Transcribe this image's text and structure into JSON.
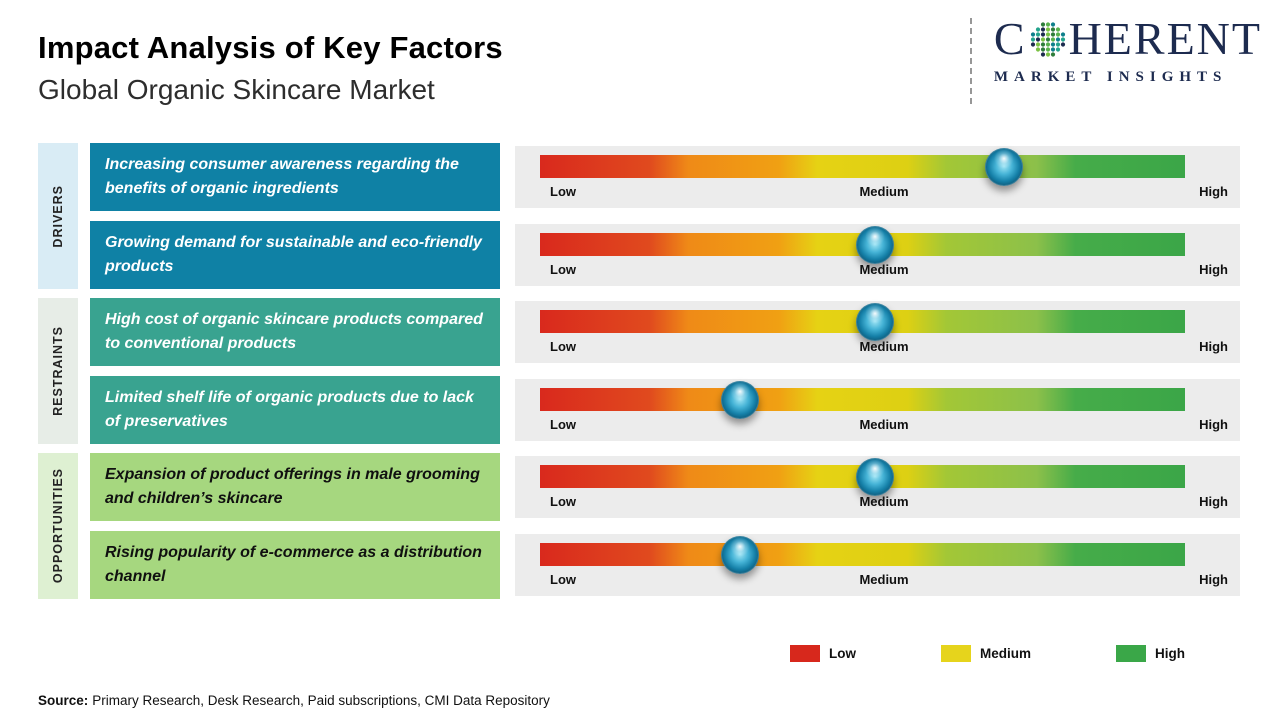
{
  "header": {
    "title": "Impact Analysis of Key Factors",
    "subtitle": "Global Organic Skincare Market"
  },
  "logo": {
    "name_prefix": "C",
    "name_suffix": "HERENT",
    "full_name": "COHERENT",
    "tagline": "MARKET INSIGHTS"
  },
  "groups": [
    {
      "label": "DRIVERS"
    },
    {
      "label": "RESTRAINTS"
    },
    {
      "label": "OPPORTUNITIES"
    }
  ],
  "gauge_scale": {
    "low": "Low",
    "medium": "Medium",
    "high": "High"
  },
  "chart_data": {
    "type": "table",
    "title": "Impact Analysis of Key Factors",
    "subtitle": "Global Organic Skincare Market",
    "scale": {
      "labels": [
        "Low",
        "Medium",
        "High"
      ],
      "low_percent": 0,
      "medium_percent": 50,
      "high_percent": 100
    },
    "rows": [
      {
        "category": "Drivers",
        "factor": "Increasing consumer awareness regarding the benefits of organic ingredients",
        "impact_percent": 72,
        "impact_level": "Medium-High"
      },
      {
        "category": "Drivers",
        "factor": "Growing demand for sustainable and eco-friendly products",
        "impact_percent": 52,
        "impact_level": "Medium"
      },
      {
        "category": "Restraints",
        "factor": "High cost of organic skincare products compared to conventional products",
        "impact_percent": 52,
        "impact_level": "Medium"
      },
      {
        "category": "Restraints",
        "factor": "Limited shelf life of organic products due to lack of preservatives",
        "impact_percent": 31,
        "impact_level": "Low-Medium"
      },
      {
        "category": "Opportunities",
        "factor": "Expansion of product offerings in male grooming and children’s skincare",
        "impact_percent": 52,
        "impact_level": "Medium"
      },
      {
        "category": "Opportunities",
        "factor": "Rising popularity of e-commerce as a distribution channel",
        "impact_percent": 31,
        "impact_level": "Low-Medium"
      }
    ]
  },
  "legend": [
    {
      "label": "Low",
      "color": "#d7281c"
    },
    {
      "label": "Medium",
      "color": "#e6d41c"
    },
    {
      "label": "High",
      "color": "#3aa748"
    }
  ],
  "source": {
    "label": "Source:",
    "text": "Primary Research, Desk Research, Paid subscriptions, CMI Data Repository"
  },
  "colors": {
    "drivers_box": "#0f81a5",
    "restraints_box": "#39a390",
    "opportunities_box": "#a6d77f",
    "drivers_strip": "#d9ecf5",
    "restraints_strip": "#e7ede7",
    "opportunities_strip": "#def0d2",
    "gauge_gradient": [
      "#d9291d",
      "#ef8a17",
      "#e6d214",
      "#a3c736",
      "#3ba648"
    ],
    "marker": "#1580a8",
    "logo_navy": "#1d2b4f",
    "logo_dot_palette": [
      "#2f7d3b",
      "#58b14c",
      "#0e7f8c",
      "#23a38c",
      "#1d2b4f",
      "#7ac143"
    ]
  }
}
